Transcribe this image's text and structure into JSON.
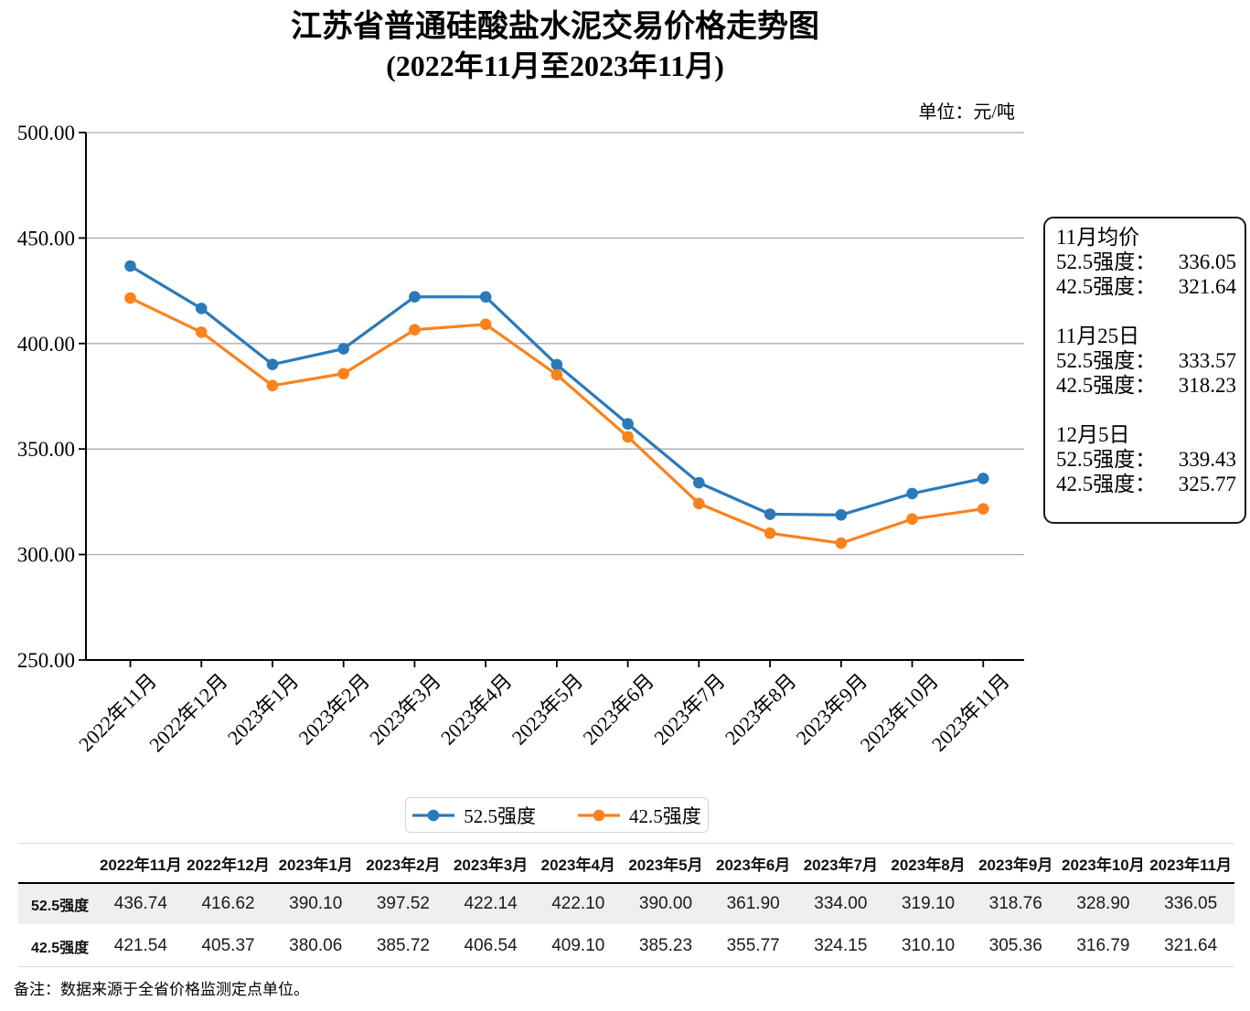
{
  "title": {
    "line1": "江苏省普通硅酸盐水泥交易价格走势图",
    "line2": "(2022年11月至2023年11月)"
  },
  "unit_label": "单位：元/吨",
  "chart_data": {
    "type": "line",
    "categories": [
      "2022年11月",
      "2022年12月",
      "2023年1月",
      "2023年2月",
      "2023年3月",
      "2023年4月",
      "2023年5月",
      "2023年6月",
      "2023年7月",
      "2023年8月",
      "2023年9月",
      "2023年10月",
      "2023年11月"
    ],
    "series": [
      {
        "name": "52.5强度",
        "color": "#2A7AB9",
        "values": [
          436.74,
          416.62,
          390.1,
          397.52,
          422.14,
          422.1,
          390.0,
          361.9,
          334.0,
          319.1,
          318.76,
          328.9,
          336.05
        ]
      },
      {
        "name": "42.5强度",
        "color": "#F9821D",
        "values": [
          421.54,
          405.37,
          380.06,
          385.72,
          406.54,
          409.1,
          385.23,
          355.77,
          324.15,
          310.1,
          305.36,
          316.79,
          321.64
        ]
      }
    ],
    "title": "江苏省普通硅酸盐水泥交易价格走势图(2022年11月至2023年11月)",
    "xlabel": "",
    "ylabel": "",
    "ylim": [
      250,
      500
    ],
    "ytick_step": 50,
    "ytick_labels": [
      "250.00",
      "300.00",
      "350.00",
      "400.00",
      "450.00",
      "500.00"
    ],
    "grid": "horizontal",
    "gridline_color": "#ababab",
    "legend_position": "bottom-center",
    "x_label_rotation_deg": 45
  },
  "info_box": {
    "groups": [
      {
        "heading": "11月均价",
        "lines": [
          {
            "label": "52.5强度：",
            "value": "336.05"
          },
          {
            "label": "42.5强度：",
            "value": "321.64"
          }
        ]
      },
      {
        "heading": "11月25日",
        "lines": [
          {
            "label": "52.5强度：",
            "value": "333.57"
          },
          {
            "label": "42.5强度：",
            "value": "318.23"
          }
        ]
      },
      {
        "heading": "12月5日",
        "lines": [
          {
            "label": "52.5强度：",
            "value": "339.43"
          },
          {
            "label": "42.5强度：",
            "value": "325.77"
          }
        ]
      }
    ]
  },
  "legend": {
    "items": [
      {
        "label": "52.5强度",
        "color": "#2A7AB9"
      },
      {
        "label": "42.5强度",
        "color": "#F9821D"
      }
    ]
  },
  "table": {
    "corner": "",
    "col_headers": [
      "2022年11月",
      "2022年12月",
      "2023年1月",
      "2023年2月",
      "2023年3月",
      "2023年4月",
      "2023年5月",
      "2023年6月",
      "2023年7月",
      "2023年8月",
      "2023年9月",
      "2023年10月",
      "2023年11月"
    ],
    "rows": [
      {
        "label": "52.5强度",
        "values": [
          "436.74",
          "416.62",
          "390.10",
          "397.52",
          "422.14",
          "422.10",
          "390.00",
          "361.90",
          "334.00",
          "319.10",
          "318.76",
          "328.90",
          "336.05"
        ]
      },
      {
        "label": "42.5强度",
        "values": [
          "421.54",
          "405.37",
          "380.06",
          "385.72",
          "406.54",
          "409.10",
          "385.23",
          "355.77",
          "324.15",
          "310.10",
          "305.36",
          "316.79",
          "321.64"
        ]
      }
    ]
  },
  "note": "备注：数据来源于全省价格监测定点单位。"
}
